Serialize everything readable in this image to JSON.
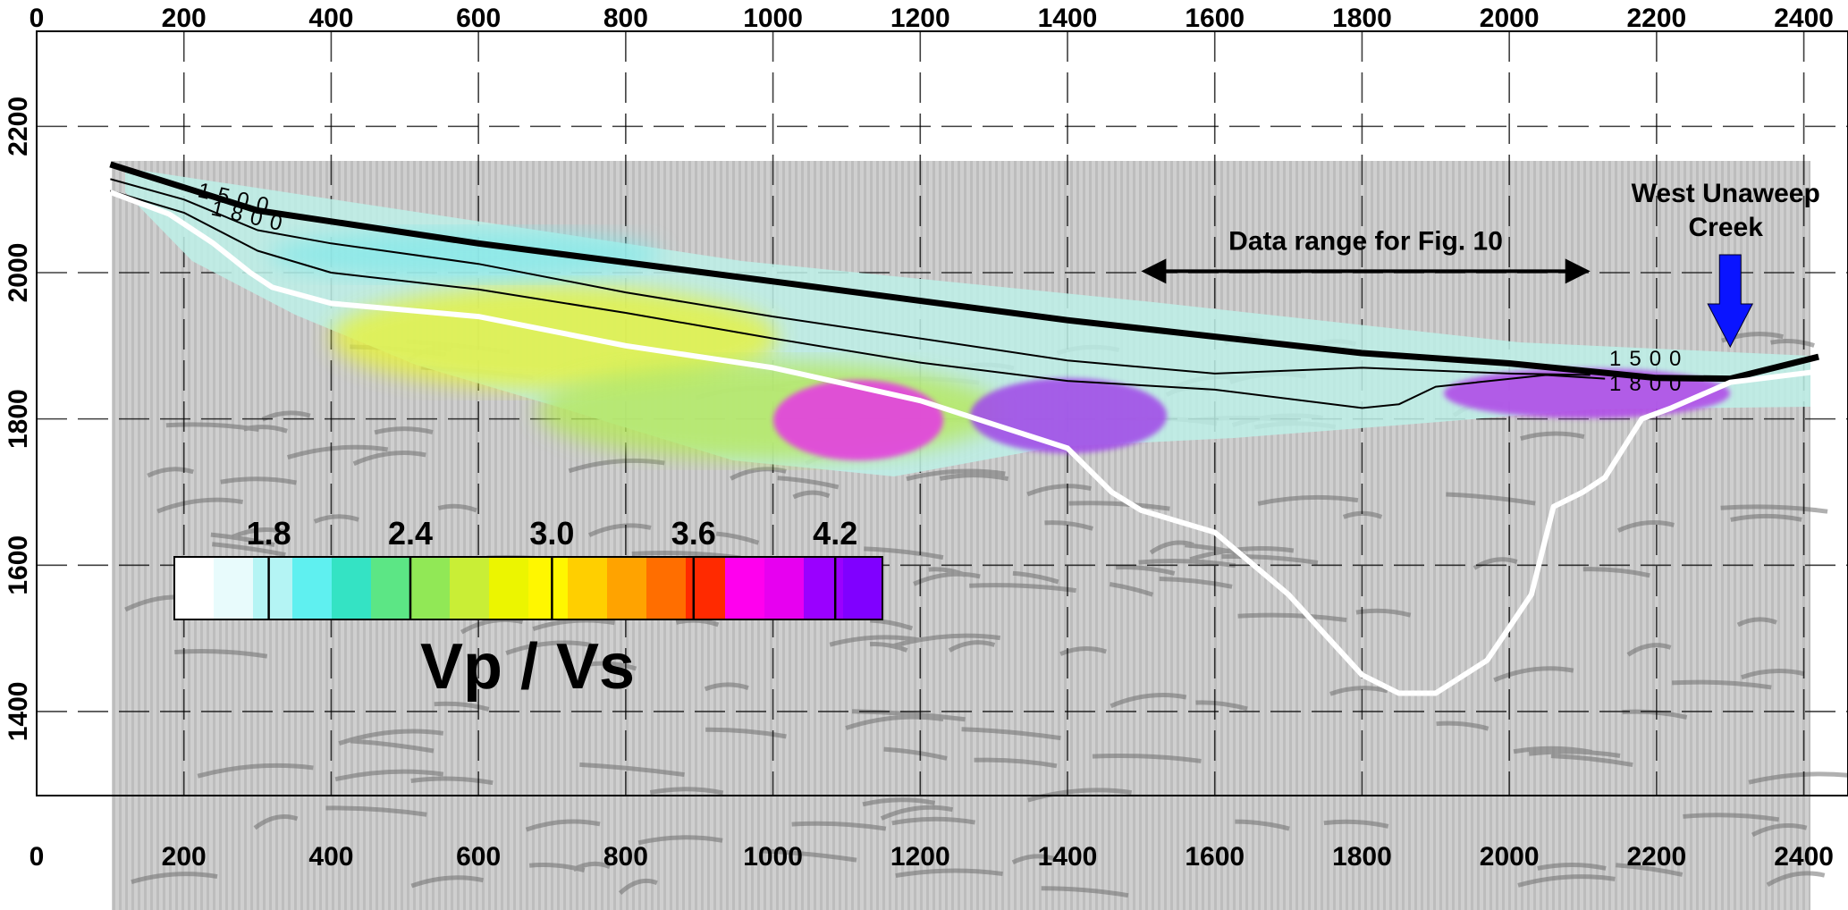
{
  "chart_data": {
    "type": "heatmap",
    "title": "Vp / Vs",
    "x_ticks": [
      "0",
      "200",
      "400",
      "600",
      "800",
      "1000",
      "1200",
      "1400",
      "1600",
      "1800",
      "2000",
      "2200",
      "2400"
    ],
    "y_ticks": [
      "2200",
      "2000",
      "1800",
      "1600",
      "1400"
    ],
    "xlim": [
      0,
      2460
    ],
    "ylim": [
      1285,
      2330
    ],
    "grid": true,
    "colorbar": {
      "title": "Vp / Vs",
      "tick_labels": [
        "1.8",
        "2.4",
        "3.0",
        "3.6",
        "4.2"
      ],
      "ticks": [
        1.8,
        2.4,
        3.0,
        3.6,
        4.2
      ],
      "range": [
        1.4,
        4.4
      ],
      "colors": [
        "#ffffff",
        "#e8fbfc",
        "#b4f4f4",
        "#5ff0f0",
        "#34e3c4",
        "#5ce685",
        "#91e856",
        "#c9ee36",
        "#ecf500",
        "#fff700",
        "#ffcf00",
        "#ffa300",
        "#ff6e00",
        "#ff2a00",
        "#ff00ee",
        "#e700f0",
        "#9a00ff",
        "#8000ff"
      ]
    },
    "contour_labels": [
      {
        "text": "1500"
      },
      {
        "text": "1800"
      },
      {
        "text": "1500"
      },
      {
        "text": "1800"
      }
    ],
    "annotations": {
      "data_range": {
        "text": "Data range for Fig. 10",
        "x_start": 1500,
        "x_end": 2110
      },
      "creek": {
        "line1": "West Unaweep",
        "line2": "Creek",
        "x": 2300
      }
    },
    "series": [
      {
        "values": [
          [
            100,
            2148
          ],
          [
            300,
            2085
          ],
          [
            600,
            2040
          ],
          [
            1000,
            1988
          ],
          [
            1400,
            1935
          ],
          [
            1800,
            1890
          ],
          [
            2000,
            1876
          ],
          [
            2200,
            1856
          ],
          [
            2300,
            1855
          ],
          [
            2420,
            1885
          ]
        ]
      },
      {
        "values": [
          [
            100,
            2128
          ],
          [
            200,
            2100
          ],
          [
            300,
            2058
          ],
          [
            400,
            2040
          ],
          [
            600,
            2012
          ],
          [
            800,
            1973
          ],
          [
            1000,
            1940
          ],
          [
            1200,
            1910
          ],
          [
            1400,
            1880
          ],
          [
            1600,
            1862
          ],
          [
            1800,
            1870
          ],
          [
            2000,
            1862
          ],
          [
            2110,
            1860
          ]
        ]
      },
      {
        "values": [
          [
            100,
            2112
          ],
          [
            200,
            2082
          ],
          [
            300,
            2030
          ],
          [
            400,
            2000
          ],
          [
            600,
            1977
          ],
          [
            800,
            1945
          ],
          [
            1000,
            1910
          ],
          [
            1200,
            1877
          ],
          [
            1400,
            1852
          ],
          [
            1600,
            1840
          ],
          [
            1800,
            1815
          ],
          [
            1850,
            1820
          ],
          [
            1900,
            1844
          ],
          [
            2050,
            1860
          ],
          [
            2130,
            1855
          ]
        ]
      },
      {
        "values": [
          [
            100,
            2110
          ],
          [
            180,
            2080
          ],
          [
            240,
            2040
          ],
          [
            290,
            2000
          ],
          [
            320,
            1980
          ],
          [
            400,
            1958
          ],
          [
            600,
            1940
          ],
          [
            800,
            1900
          ],
          [
            1000,
            1870
          ],
          [
            1200,
            1825
          ],
          [
            1400,
            1760
          ],
          [
            1460,
            1700
          ],
          [
            1500,
            1675
          ],
          [
            1600,
            1645
          ],
          [
            1700,
            1560
          ],
          [
            1800,
            1450
          ],
          [
            1850,
            1425
          ],
          [
            1900,
            1425
          ],
          [
            1970,
            1470
          ],
          [
            2030,
            1560
          ],
          [
            2060,
            1680
          ],
          [
            2100,
            1700
          ],
          [
            2130,
            1720
          ],
          [
            2180,
            1800
          ],
          [
            2220,
            1815
          ],
          [
            2300,
            1850
          ],
          [
            2420,
            1865
          ]
        ]
      }
    ]
  }
}
